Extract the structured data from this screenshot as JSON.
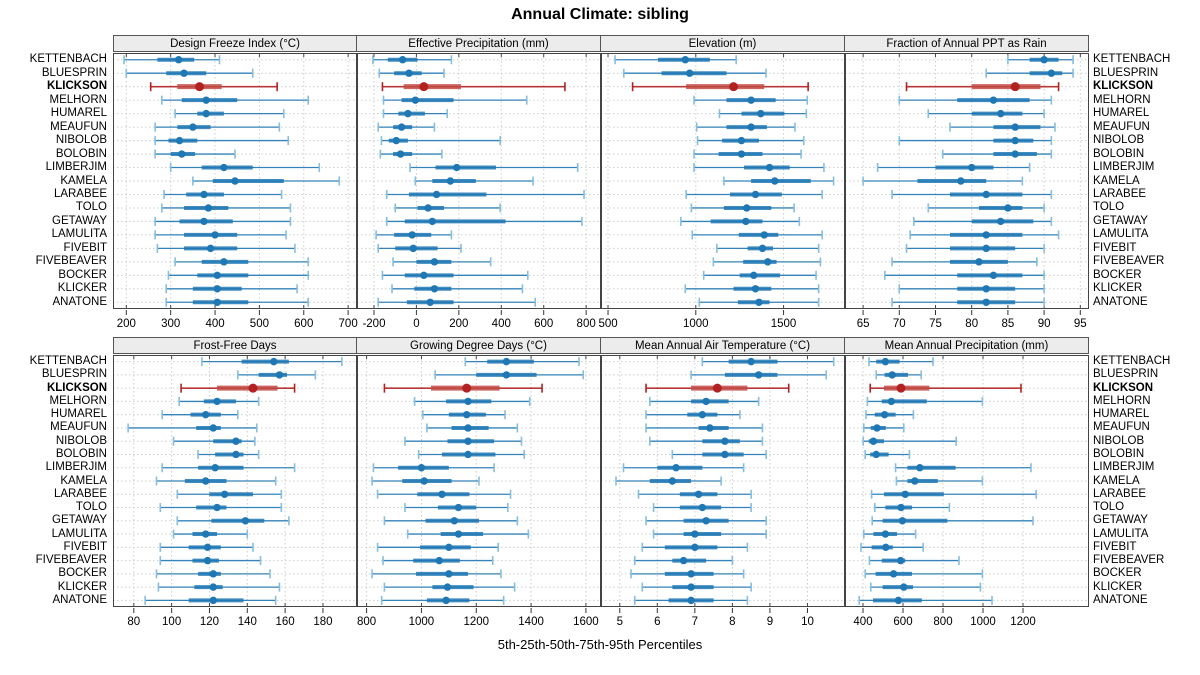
{
  "title": "Annual Climate: sibling",
  "chart_data": {
    "type": "dotplot-matrix",
    "title": "Annual Climate: sibling",
    "xlabel": "5th-25th-50th-75th-95th Percentiles",
    "percentiles": [
      "5th",
      "25th",
      "50th",
      "75th",
      "95th"
    ],
    "legend_position": "none",
    "grid": "dotted",
    "highlight_station": "KLICKSON",
    "stations": [
      "KETTENBACH",
      "BLUESPRIN",
      "KLICKSON",
      "MELHORN",
      "HUMAREL",
      "MEAUFUN",
      "NIBOLOB",
      "BOLOBIN",
      "LIMBERJIM",
      "KAMELA",
      "LARABEE",
      "TOLO",
      "GETAWAY",
      "LAMULITA",
      "FIVEBIT",
      "FIVEBEAVER",
      "BOCKER",
      "KLICKER",
      "ANATONE"
    ],
    "colors": {
      "normal": "#1f77b4",
      "normal_bar": "#1f77b4",
      "normal_cap": "#85bede",
      "highlight": "#b22222",
      "highlight_bar": "#c24a44",
      "header_bg": "#ececec",
      "grid": "#cdcdcd",
      "frame": "#444444"
    },
    "panels": [
      {
        "title": "Design Freeze Index (°C)",
        "xlim": [
          170,
          720
        ],
        "ticks": [
          200,
          300,
          400,
          500,
          600,
          700
        ],
        "values": [
          [
            195,
            270,
            318,
            353,
            410
          ],
          [
            200,
            290,
            330,
            380,
            485
          ],
          [
            255,
            315,
            365,
            415,
            540
          ],
          [
            280,
            325,
            380,
            450,
            610
          ],
          [
            310,
            360,
            380,
            420,
            555
          ],
          [
            265,
            315,
            350,
            390,
            545
          ],
          [
            265,
            295,
            320,
            360,
            565
          ],
          [
            265,
            300,
            325,
            355,
            445
          ],
          [
            300,
            370,
            420,
            485,
            635
          ],
          [
            350,
            395,
            445,
            555,
            680
          ],
          [
            285,
            335,
            375,
            420,
            550
          ],
          [
            280,
            330,
            385,
            430,
            570
          ],
          [
            265,
            320,
            375,
            440,
            570
          ],
          [
            265,
            330,
            400,
            450,
            560
          ],
          [
            270,
            330,
            390,
            450,
            580
          ],
          [
            310,
            370,
            420,
            475,
            610
          ],
          [
            295,
            360,
            405,
            475,
            610
          ],
          [
            290,
            350,
            405,
            460,
            585
          ],
          [
            290,
            350,
            405,
            475,
            610
          ]
        ]
      },
      {
        "title": "Effective Precipitation (mm)",
        "xlim": [
          -280,
          870
        ],
        "ticks": [
          -200,
          0,
          200,
          400,
          600,
          800
        ],
        "values": [
          [
            -205,
            -135,
            -65,
            5,
            165
          ],
          [
            -175,
            -105,
            -35,
            25,
            130
          ],
          [
            -160,
            -60,
            35,
            210,
            700
          ],
          [
            -155,
            -70,
            -5,
            175,
            520
          ],
          [
            -155,
            -85,
            -40,
            40,
            145
          ],
          [
            -180,
            -110,
            -70,
            -20,
            85
          ],
          [
            -165,
            -130,
            -95,
            -40,
            395
          ],
          [
            -170,
            -110,
            -75,
            -20,
            120
          ],
          [
            -30,
            90,
            190,
            375,
            760
          ],
          [
            -5,
            75,
            160,
            280,
            550
          ],
          [
            -140,
            -35,
            95,
            330,
            790
          ],
          [
            -100,
            5,
            55,
            130,
            395
          ],
          [
            -140,
            -55,
            75,
            420,
            780
          ],
          [
            -190,
            -105,
            -20,
            70,
            165
          ],
          [
            -180,
            -100,
            -15,
            100,
            210
          ],
          [
            -110,
            0,
            85,
            165,
            350
          ],
          [
            -160,
            -55,
            35,
            175,
            525
          ],
          [
            -115,
            -10,
            85,
            165,
            500
          ],
          [
            -180,
            -45,
            65,
            175,
            560
          ]
        ]
      },
      {
        "title": "Elevation (m)",
        "xlim": [
          460,
          1850
        ],
        "ticks": [
          500,
          1000,
          1500
        ],
        "values": [
          [
            540,
            785,
            940,
            1080,
            1230
          ],
          [
            590,
            805,
            965,
            1175,
            1400
          ],
          [
            640,
            945,
            1215,
            1390,
            1640
          ],
          [
            990,
            1175,
            1315,
            1455,
            1635
          ],
          [
            1135,
            1260,
            1370,
            1505,
            1630
          ],
          [
            1005,
            1175,
            1315,
            1405,
            1565
          ],
          [
            1010,
            1150,
            1260,
            1360,
            1615
          ],
          [
            990,
            1130,
            1260,
            1380,
            1600
          ],
          [
            990,
            1275,
            1420,
            1535,
            1730
          ],
          [
            1160,
            1315,
            1450,
            1655,
            1785
          ],
          [
            945,
            1195,
            1340,
            1490,
            1720
          ],
          [
            975,
            1160,
            1290,
            1430,
            1560
          ],
          [
            915,
            1085,
            1285,
            1380,
            1590
          ],
          [
            980,
            1245,
            1390,
            1470,
            1720
          ],
          [
            1120,
            1295,
            1380,
            1440,
            1700
          ],
          [
            1100,
            1270,
            1410,
            1460,
            1710
          ],
          [
            1045,
            1250,
            1330,
            1480,
            1685
          ],
          [
            940,
            1215,
            1340,
            1430,
            1700
          ],
          [
            1020,
            1240,
            1360,
            1420,
            1700
          ]
        ]
      },
      {
        "title": "Fraction of Annual PPT as Rain",
        "xlim": [
          62.5,
          96.2
        ],
        "ticks": [
          65,
          70,
          75,
          80,
          85,
          90,
          95
        ],
        "values": [
          [
            85,
            88,
            90,
            92,
            94
          ],
          [
            82,
            88,
            91,
            92.5,
            94
          ],
          [
            71,
            80,
            86,
            89.5,
            92
          ],
          [
            70,
            78,
            83,
            88,
            91
          ],
          [
            74,
            80,
            84,
            87,
            90
          ],
          [
            77,
            83,
            86,
            89.5,
            91.5
          ],
          [
            70,
            83,
            86,
            88.5,
            91
          ],
          [
            76,
            83,
            86,
            89,
            91
          ],
          [
            67,
            75,
            80,
            83,
            88
          ],
          [
            65,
            72.5,
            78.5,
            82,
            87
          ],
          [
            69,
            77,
            82,
            87,
            91
          ],
          [
            74,
            81,
            85,
            87,
            90
          ],
          [
            72,
            80,
            84,
            88.5,
            91
          ],
          [
            71.5,
            77,
            82,
            87,
            92
          ],
          [
            71,
            77,
            82,
            86,
            90
          ],
          [
            69,
            77,
            81,
            85,
            89
          ],
          [
            68,
            78,
            83,
            87,
            90
          ],
          [
            70,
            78,
            82,
            86,
            90
          ],
          [
            69,
            78,
            82,
            86,
            90
          ]
        ]
      },
      {
        "title": "Frost-Free Days",
        "xlim": [
          69,
          198
        ],
        "ticks": [
          80,
          100,
          120,
          140,
          160,
          180
        ],
        "values": [
          [
            116,
            137,
            154,
            162,
            190
          ],
          [
            135,
            146,
            157,
            161,
            176
          ],
          [
            105,
            124,
            143,
            156,
            165
          ],
          [
            104,
            117,
            124,
            134,
            146
          ],
          [
            95,
            110,
            118,
            126,
            135
          ],
          [
            77,
            113,
            122,
            126,
            145
          ],
          [
            101,
            122,
            134,
            137,
            144
          ],
          [
            114,
            123,
            134,
            138,
            146
          ],
          [
            95,
            114,
            123,
            138,
            165
          ],
          [
            92,
            107,
            118,
            129,
            155
          ],
          [
            103,
            120,
            128,
            143,
            158
          ],
          [
            94,
            113,
            124,
            129,
            158
          ],
          [
            103,
            121,
            139,
            149,
            162
          ],
          [
            101,
            111,
            118,
            124,
            140
          ],
          [
            94,
            109,
            119,
            126,
            143
          ],
          [
            94,
            111,
            119,
            125,
            147
          ],
          [
            92,
            114,
            122,
            126,
            152
          ],
          [
            93,
            112,
            122,
            127,
            157
          ],
          [
            86,
            109,
            122,
            138,
            155
          ]
        ]
      },
      {
        "title": "Growing Degree Days (°C)",
        "xlim": [
          765,
          1655
        ],
        "ticks": [
          800,
          1000,
          1200,
          1400,
          1600
        ],
        "values": [
          [
            1160,
            1240,
            1310,
            1410,
            1575
          ],
          [
            1050,
            1200,
            1310,
            1420,
            1590
          ],
          [
            865,
            1035,
            1165,
            1285,
            1440
          ],
          [
            975,
            1090,
            1170,
            1255,
            1395
          ],
          [
            1005,
            1100,
            1165,
            1235,
            1305
          ],
          [
            1020,
            1110,
            1170,
            1245,
            1350
          ],
          [
            940,
            1095,
            1170,
            1265,
            1365
          ],
          [
            990,
            1075,
            1170,
            1270,
            1375
          ],
          [
            825,
            915,
            1000,
            1100,
            1265
          ],
          [
            820,
            930,
            1010,
            1110,
            1210
          ],
          [
            840,
            985,
            1075,
            1175,
            1325
          ],
          [
            940,
            1060,
            1135,
            1200,
            1315
          ],
          [
            865,
            1015,
            1120,
            1210,
            1350
          ],
          [
            950,
            1070,
            1135,
            1225,
            1390
          ],
          [
            840,
            995,
            1100,
            1180,
            1280
          ],
          [
            860,
            970,
            1065,
            1140,
            1260
          ],
          [
            820,
            980,
            1100,
            1170,
            1290
          ],
          [
            865,
            1040,
            1095,
            1190,
            1340
          ],
          [
            855,
            1020,
            1090,
            1175,
            1300
          ]
        ]
      },
      {
        "title": "Mean Annual Air Temperature (°C)",
        "xlim": [
          4.5,
          11.0
        ],
        "ticks": [
          5,
          6,
          7,
          8,
          9,
          10
        ],
        "values": [
          [
            7.2,
            7.9,
            8.5,
            9.2,
            10.7
          ],
          [
            6.9,
            7.8,
            8.7,
            9.2,
            10.5
          ],
          [
            5.7,
            6.9,
            7.6,
            8.4,
            9.5
          ],
          [
            5.8,
            6.9,
            7.3,
            7.9,
            8.7
          ],
          [
            5.7,
            6.8,
            7.2,
            7.6,
            8.2
          ],
          [
            5.7,
            7.1,
            7.4,
            7.9,
            8.8
          ],
          [
            5.8,
            7.2,
            7.8,
            8.2,
            8.8
          ],
          [
            6.4,
            7.2,
            7.8,
            8.3,
            8.9
          ],
          [
            5.1,
            6.0,
            6.5,
            7.2,
            8.3
          ],
          [
            4.9,
            5.8,
            6.4,
            6.9,
            7.7
          ],
          [
            5.5,
            6.6,
            7.1,
            7.6,
            8.5
          ],
          [
            5.9,
            6.6,
            7.2,
            7.7,
            8.5
          ],
          [
            5.7,
            6.7,
            7.3,
            7.9,
            8.9
          ],
          [
            5.9,
            6.7,
            7.0,
            7.7,
            8.9
          ],
          [
            5.6,
            6.2,
            7.0,
            7.6,
            8.4
          ],
          [
            5.4,
            6.4,
            6.7,
            7.3,
            8.0
          ],
          [
            5.3,
            6.2,
            6.9,
            7.5,
            8.3
          ],
          [
            5.6,
            6.4,
            6.9,
            7.5,
            8.5
          ],
          [
            5.4,
            6.3,
            6.9,
            7.5,
            8.4
          ]
        ]
      },
      {
        "title": "Mean Annual Precipitation (mm)",
        "xlim": [
          310,
          1530
        ],
        "ticks": [
          400,
          600,
          800,
          1000,
          1200
        ],
        "values": [
          [
            430,
            466,
            512,
            583,
            750
          ],
          [
            466,
            508,
            546,
            625,
            691
          ],
          [
            436,
            505,
            590,
            732,
            1190
          ],
          [
            422,
            494,
            542,
            719,
            997
          ],
          [
            415,
            459,
            508,
            563,
            652
          ],
          [
            404,
            439,
            470,
            514,
            604
          ],
          [
            401,
            429,
            452,
            505,
            866
          ],
          [
            411,
            436,
            466,
            528,
            632
          ],
          [
            563,
            622,
            684,
            863,
            1240
          ],
          [
            567,
            622,
            659,
            774,
            997
          ],
          [
            443,
            505,
            611,
            804,
            1266
          ],
          [
            459,
            512,
            590,
            645,
            832
          ],
          [
            446,
            498,
            597,
            822,
            1250
          ],
          [
            404,
            452,
            512,
            570,
            663
          ],
          [
            390,
            443,
            514,
            549,
            701
          ],
          [
            432,
            494,
            588,
            611,
            880
          ],
          [
            411,
            463,
            553,
            645,
            997
          ],
          [
            439,
            498,
            604,
            650,
            987
          ],
          [
            381,
            450,
            577,
            694,
            1045
          ]
        ]
      }
    ]
  }
}
